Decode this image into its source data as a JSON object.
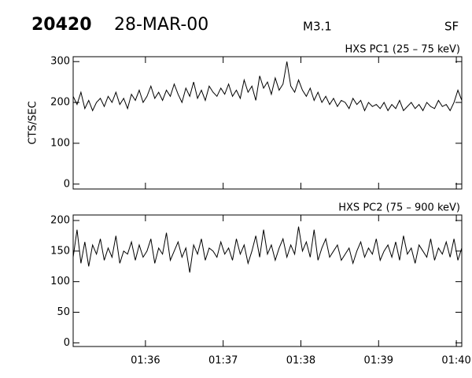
{
  "header": {
    "id": "20420",
    "date": "28-MAR-00",
    "class": "M3.1",
    "flare": "SF"
  },
  "chart_data": [
    {
      "type": "line",
      "title": "HXS PC1 (25 – 75 keV)",
      "y_label": "CTS/SEC",
      "ylim": [
        -12,
        312
      ],
      "yticks": [
        0,
        100,
        200,
        300
      ],
      "xlim": [
        95.07,
        100.07
      ],
      "color": "#000000",
      "x": [
        95.07,
        95.12,
        95.17,
        95.22,
        95.27,
        95.32,
        95.37,
        95.42,
        95.47,
        95.52,
        95.57,
        95.62,
        95.67,
        95.72,
        95.77,
        95.82,
        95.87,
        95.92,
        95.97,
        96.02,
        96.07,
        96.12,
        96.17,
        96.22,
        96.27,
        96.32,
        96.37,
        96.42,
        96.47,
        96.52,
        96.57,
        96.62,
        96.67,
        96.72,
        96.77,
        96.82,
        96.87,
        96.92,
        96.97,
        97.02,
        97.07,
        97.12,
        97.17,
        97.22,
        97.27,
        97.32,
        97.37,
        97.42,
        97.47,
        97.52,
        97.57,
        97.62,
        97.67,
        97.72,
        97.77,
        97.82,
        97.87,
        97.92,
        97.97,
        98.02,
        98.07,
        98.12,
        98.17,
        98.22,
        98.27,
        98.32,
        98.37,
        98.42,
        98.47,
        98.52,
        98.57,
        98.62,
        98.67,
        98.72,
        98.77,
        98.82,
        98.87,
        98.92,
        98.97,
        99.02,
        99.07,
        99.12,
        99.17,
        99.22,
        99.27,
        99.32,
        99.37,
        99.42,
        99.47,
        99.52,
        99.57,
        99.62,
        99.67,
        99.72,
        99.77,
        99.82,
        99.87,
        99.92,
        99.97,
        100.02,
        100.07
      ],
      "values": [
        215,
        195,
        225,
        185,
        205,
        180,
        200,
        210,
        190,
        215,
        200,
        225,
        195,
        210,
        185,
        220,
        205,
        230,
        200,
        215,
        240,
        210,
        225,
        205,
        230,
        215,
        245,
        220,
        200,
        235,
        215,
        250,
        210,
        230,
        205,
        240,
        225,
        215,
        235,
        220,
        245,
        215,
        230,
        210,
        255,
        225,
        240,
        205,
        265,
        235,
        250,
        220,
        260,
        230,
        245,
        300,
        240,
        225,
        255,
        230,
        215,
        235,
        205,
        225,
        200,
        215,
        195,
        210,
        190,
        205,
        200,
        185,
        210,
        195,
        205,
        180,
        200,
        190,
        195,
        185,
        200,
        180,
        195,
        185,
        205,
        180,
        190,
        200,
        185,
        195,
        180,
        200,
        190,
        185,
        205,
        190,
        195,
        180,
        200,
        230,
        205
      ]
    },
    {
      "type": "line",
      "title": "HXS PC2 (75 – 900 keV)",
      "ylim": [
        -6,
        209
      ],
      "yticks": [
        0,
        50,
        100,
        150,
        200
      ],
      "xlim": [
        95.07,
        100.07
      ],
      "color": "#000000",
      "xticks": [
        {
          "value": 96,
          "label": "01:36"
        },
        {
          "value": 97,
          "label": "01:37"
        },
        {
          "value": 98,
          "label": "01:38"
        },
        {
          "value": 99,
          "label": "01:39"
        },
        {
          "value": 100,
          "label": "01:40"
        }
      ],
      "x": [
        95.07,
        95.12,
        95.17,
        95.22,
        95.27,
        95.32,
        95.37,
        95.42,
        95.47,
        95.52,
        95.57,
        95.62,
        95.67,
        95.72,
        95.77,
        95.82,
        95.87,
        95.92,
        95.97,
        96.02,
        96.07,
        96.12,
        96.17,
        96.22,
        96.27,
        96.32,
        96.37,
        96.42,
        96.47,
        96.52,
        96.57,
        96.62,
        96.67,
        96.72,
        96.77,
        96.82,
        96.87,
        96.92,
        96.97,
        97.02,
        97.07,
        97.12,
        97.17,
        97.22,
        97.27,
        97.32,
        97.37,
        97.42,
        97.47,
        97.52,
        97.57,
        97.62,
        97.67,
        97.72,
        97.77,
        97.82,
        97.87,
        97.92,
        97.97,
        98.02,
        98.07,
        98.12,
        98.17,
        98.22,
        98.27,
        98.32,
        98.37,
        98.42,
        98.47,
        98.52,
        98.57,
        98.62,
        98.67,
        98.72,
        98.77,
        98.82,
        98.87,
        98.92,
        98.97,
        99.02,
        99.07,
        99.12,
        99.17,
        99.22,
        99.27,
        99.32,
        99.37,
        99.42,
        99.47,
        99.52,
        99.57,
        99.62,
        99.67,
        99.72,
        99.77,
        99.82,
        99.87,
        99.92,
        99.97,
        100.02,
        100.07
      ],
      "values": [
        140,
        185,
        130,
        165,
        125,
        160,
        145,
        170,
        135,
        155,
        140,
        175,
        130,
        150,
        145,
        165,
        135,
        160,
        140,
        150,
        170,
        130,
        155,
        145,
        180,
        135,
        150,
        165,
        140,
        155,
        115,
        160,
        145,
        170,
        135,
        155,
        150,
        140,
        165,
        145,
        155,
        135,
        170,
        145,
        160,
        130,
        150,
        175,
        140,
        185,
        145,
        160,
        135,
        155,
        170,
        140,
        160,
        145,
        190,
        150,
        165,
        140,
        185,
        135,
        155,
        170,
        140,
        150,
        160,
        135,
        145,
        155,
        130,
        150,
        165,
        140,
        155,
        145,
        170,
        135,
        150,
        160,
        140,
        165,
        135,
        175,
        145,
        155,
        130,
        160,
        150,
        140,
        170,
        135,
        155,
        145,
        165,
        140,
        170,
        135,
        155
      ]
    }
  ]
}
